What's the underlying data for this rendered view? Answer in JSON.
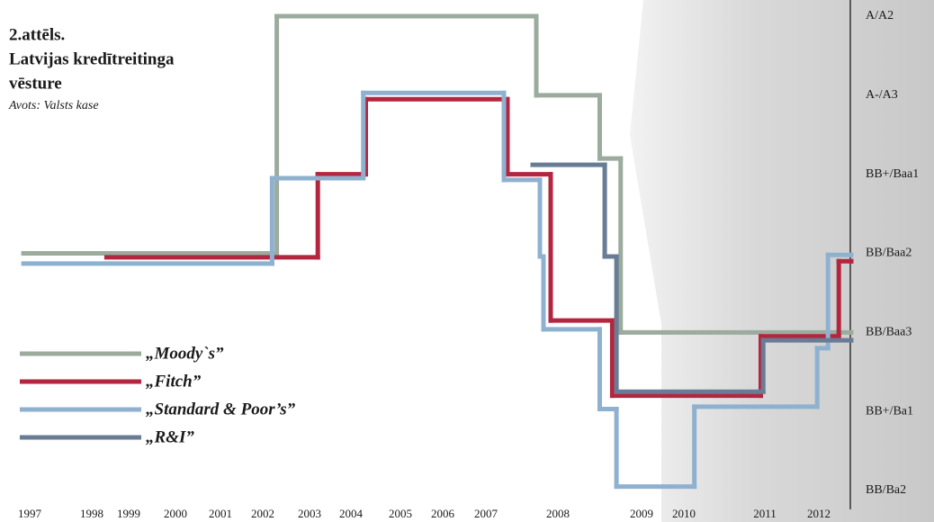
{
  "chart_data": {
    "type": "step",
    "title": "2.attēls.",
    "subtitle": [
      "Latvijas kredītreitinga",
      "vēsture"
    ],
    "source": "Avots: Valsts kase",
    "ylim": [
      0,
      6
    ],
    "yticks": [
      {
        "value": 6,
        "label": "A/A2"
      },
      {
        "value": 5,
        "label": "A-/A3"
      },
      {
        "value": 4,
        "label": "BB+/Baa1"
      },
      {
        "value": 3,
        "label": "BB/Baa2"
      },
      {
        "value": 2,
        "label": "BB/Baa3"
      },
      {
        "value": 1,
        "label": "BB+/Ba1"
      },
      {
        "value": 0,
        "label": "BB/Ba2"
      }
    ],
    "xticks": [
      1997,
      1998,
      1999,
      2000,
      2001,
      2002,
      2003,
      2004,
      2005,
      2006,
      2007,
      2008,
      2009,
      2010,
      2011,
      2012
    ],
    "series": [
      {
        "name": "„Moody`s”",
        "color": "#9bab9d",
        "x": [
          1996.9,
          2002.3,
          2007.7,
          2008.5,
          2008.75,
          2012.6
        ],
        "values": [
          3,
          6,
          5,
          4.2,
          2,
          2
        ]
      },
      {
        "name": "„Fitch”",
        "color": "#b3263f",
        "x": [
          1998.4,
          2003.2,
          2004.3,
          2007.3,
          2007.9,
          2008.65,
          2010.95,
          2012.37,
          2012.6
        ],
        "values": [
          2.95,
          4,
          4.95,
          4,
          2.15,
          1.2,
          1.95,
          2.9,
          2.9
        ]
      },
      {
        "name": "„Standard & Poor’s”",
        "color": "#8fb1d0",
        "x": [
          1996.9,
          2002.2,
          2004.25,
          2007.25,
          2007.75,
          2007.8,
          2008.5,
          2008.7,
          2010.13,
          2011.97,
          2012.17,
          2012.6
        ],
        "values": [
          2.87,
          3.95,
          5.03,
          3.93,
          2.96,
          2.04,
          1.03,
          0.05,
          1.06,
          1.8,
          2.98,
          2.98
        ]
      },
      {
        "name": "„R&I”",
        "color": "#687d95",
        "x": [
          2007.65,
          2008.56,
          2008.7,
          2010.98,
          2012.6
        ],
        "values": [
          4.12,
          2.96,
          1.25,
          1.9,
          1.9
        ]
      }
    ]
  }
}
